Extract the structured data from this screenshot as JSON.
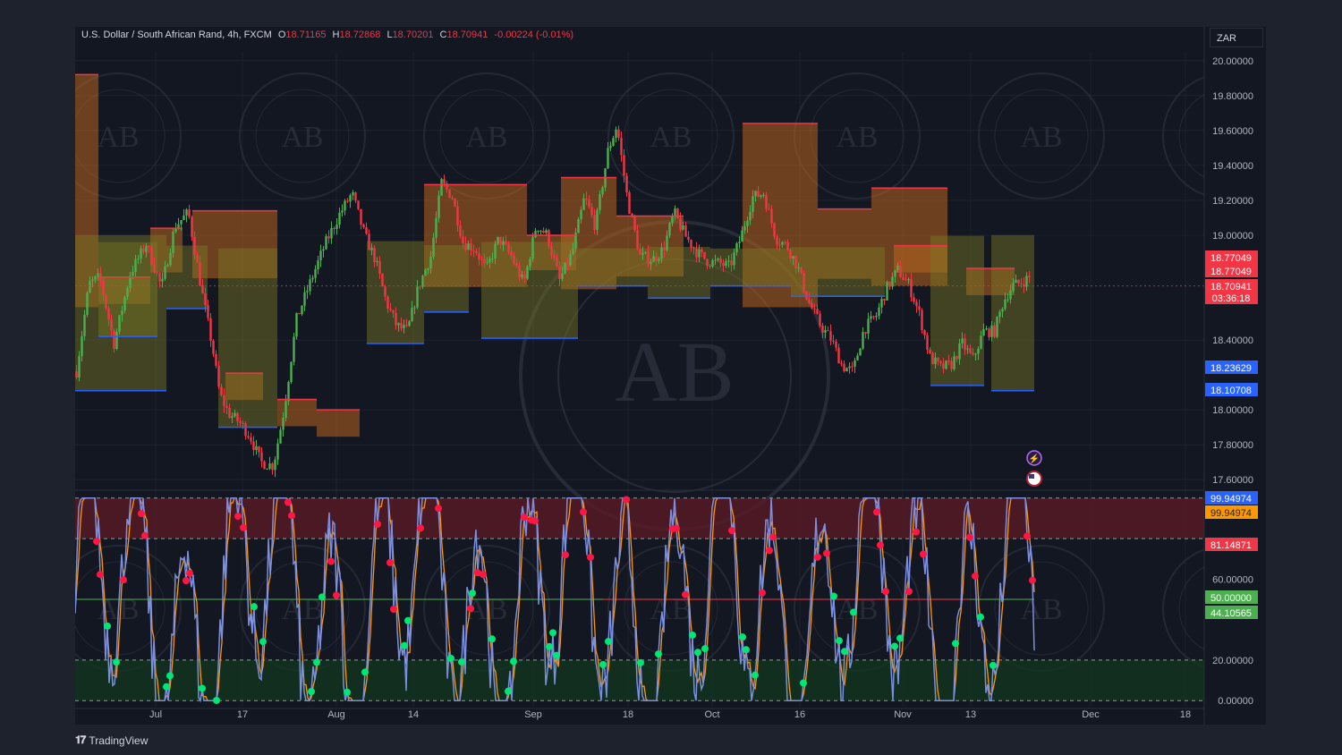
{
  "header": {
    "symbol": "U.S. Dollar / South African Rand, 4h, FXCM",
    "open_key": "O",
    "open": "18.71165",
    "high_key": "H",
    "high": "18.72868",
    "low_key": "L",
    "low": "18.70201",
    "close_key": "C",
    "close": "18.70941",
    "change": "-0.00224 (-0.01%)"
  },
  "currency_button": "ZAR",
  "branding": "TradingView",
  "colors": {
    "background": "#131722",
    "outer": "#1e222d",
    "bull": "#26a69a",
    "candle_green": "#4caf50",
    "candle_red": "#f23645",
    "resistance": "#f23645",
    "support": "#2962ff",
    "zone_bear": "#b8651f",
    "zone_bull": "#7a7a24",
    "k_line": "#7b8ee0",
    "d_line": "#ff9800",
    "overbought_fill": "#5a1a24",
    "oversold_fill": "#12351f",
    "mid_line": "#4caf50",
    "cross_up": "#00e676",
    "cross_down": "#ff1744"
  },
  "watermark": "AB",
  "chart_data": [
    {
      "type": "candlestick",
      "title": "U.S. Dollar / South African Rand, 4h, FXCM",
      "x_ticks": [
        "Jul",
        "17",
        "Aug",
        "14",
        "Sep",
        "18",
        "Oct",
        "16",
        "Nov",
        "13",
        "Dec",
        "18"
      ],
      "y_ticks": [
        "20.00000",
        "19.80000",
        "19.60000",
        "19.40000",
        "19.20000",
        "19.00000",
        "18.40000",
        "18.00000",
        "17.80000",
        "17.60000"
      ],
      "ylim": [
        17.55,
        20.05
      ],
      "price_path": [
        [
          0,
          18.22
        ],
        [
          14,
          18.72
        ],
        [
          26,
          18.76
        ],
        [
          42,
          18.38
        ],
        [
          60,
          18.78
        ],
        [
          78,
          18.95
        ],
        [
          95,
          18.7
        ],
        [
          110,
          19.05
        ],
        [
          125,
          19.13
        ],
        [
          140,
          18.68
        ],
        [
          152,
          18.36
        ],
        [
          160,
          18.09
        ],
        [
          170,
          17.98
        ],
        [
          182,
          17.93
        ],
        [
          194,
          17.85
        ],
        [
          206,
          17.7
        ],
        [
          220,
          17.68
        ],
        [
          232,
          18.0
        ],
        [
          246,
          18.52
        ],
        [
          262,
          18.74
        ],
        [
          278,
          18.95
        ],
        [
          294,
          19.12
        ],
        [
          308,
          19.24
        ],
        [
          322,
          19.0
        ],
        [
          334,
          18.86
        ],
        [
          346,
          18.62
        ],
        [
          358,
          18.48
        ],
        [
          370,
          18.45
        ],
        [
          382,
          18.7
        ],
        [
          396,
          18.88
        ],
        [
          408,
          19.3
        ],
        [
          420,
          19.22
        ],
        [
          432,
          18.96
        ],
        [
          446,
          18.92
        ],
        [
          458,
          18.8
        ],
        [
          472,
          18.98
        ],
        [
          486,
          18.88
        ],
        [
          500,
          18.72
        ],
        [
          514,
          19.06
        ],
        [
          526,
          19.0
        ],
        [
          540,
          18.74
        ],
        [
          554,
          18.9
        ],
        [
          568,
          19.22
        ],
        [
          580,
          19.05
        ],
        [
          594,
          19.48
        ],
        [
          604,
          19.63
        ],
        [
          616,
          19.2
        ],
        [
          630,
          18.88
        ],
        [
          644,
          18.86
        ],
        [
          656,
          18.92
        ],
        [
          668,
          19.13
        ],
        [
          680,
          19.0
        ],
        [
          694,
          18.9
        ],
        [
          706,
          18.85
        ],
        [
          718,
          18.84
        ],
        [
          730,
          18.82
        ],
        [
          742,
          18.98
        ],
        [
          756,
          19.22
        ],
        [
          768,
          19.24
        ],
        [
          782,
          18.98
        ],
        [
          794,
          18.94
        ],
        [
          806,
          18.82
        ],
        [
          818,
          18.62
        ],
        [
          832,
          18.48
        ],
        [
          844,
          18.4
        ],
        [
          856,
          18.25
        ],
        [
          868,
          18.22
        ],
        [
          880,
          18.46
        ],
        [
          894,
          18.54
        ],
        [
          906,
          18.7
        ],
        [
          918,
          18.8
        ],
        [
          930,
          18.72
        ],
        [
          942,
          18.55
        ],
        [
          954,
          18.3
        ],
        [
          966,
          18.24
        ],
        [
          978,
          18.26
        ],
        [
          990,
          18.38
        ],
        [
          1002,
          18.29
        ],
        [
          1014,
          18.45
        ],
        [
          1026,
          18.45
        ],
        [
          1036,
          18.62
        ],
        [
          1046,
          18.71
        ],
        [
          1056,
          18.73
        ],
        [
          1066,
          18.76
        ]
      ],
      "levels": {
        "resistance": [
          {
            "x0": 0,
            "x1": 26,
            "y": 19.92
          },
          {
            "x0": 26,
            "x1": 84,
            "y": 18.76
          },
          {
            "x0": 84,
            "x1": 120,
            "y": 19.04
          },
          {
            "x0": 131,
            "x1": 226,
            "y": 19.14
          },
          {
            "x0": 168,
            "x1": 210,
            "y": 18.21
          },
          {
            "x0": 226,
            "x1": 270,
            "y": 18.06
          },
          {
            "x0": 270,
            "x1": 318,
            "y": 18.0
          },
          {
            "x0": 390,
            "x1": 505,
            "y": 19.29
          },
          {
            "x0": 505,
            "x1": 560,
            "y": 19.0
          },
          {
            "x0": 543,
            "x1": 605,
            "y": 19.33
          },
          {
            "x0": 605,
            "x1": 680,
            "y": 19.11
          },
          {
            "x0": 746,
            "x1": 830,
            "y": 19.64
          },
          {
            "x0": 830,
            "x1": 890,
            "y": 19.15
          },
          {
            "x0": 890,
            "x1": 975,
            "y": 19.27
          },
          {
            "x0": 915,
            "x1": 975,
            "y": 18.94
          },
          {
            "x0": 996,
            "x1": 1050,
            "y": 18.81
          }
        ],
        "support": [
          {
            "x0": 0,
            "x1": 102,
            "y": 18.11
          },
          {
            "x0": 26,
            "x1": 92,
            "y": 18.42
          },
          {
            "x0": 102,
            "x1": 148,
            "y": 18.58
          },
          {
            "x0": 160,
            "x1": 226,
            "y": 17.9
          },
          {
            "x0": 326,
            "x1": 390,
            "y": 18.38
          },
          {
            "x0": 390,
            "x1": 440,
            "y": 18.56
          },
          {
            "x0": 454,
            "x1": 562,
            "y": 18.41
          },
          {
            "x0": 562,
            "x1": 640,
            "y": 18.71
          },
          {
            "x0": 640,
            "x1": 710,
            "y": 18.64
          },
          {
            "x0": 710,
            "x1": 800,
            "y": 18.71
          },
          {
            "x0": 800,
            "x1": 905,
            "y": 18.65
          },
          {
            "x0": 956,
            "x1": 1016,
            "y": 18.14
          },
          {
            "x0": 1024,
            "x1": 1072,
            "y": 18.11
          }
        ]
      },
      "price_labels": [
        {
          "value": "18.77049",
          "color": "#f23645"
        },
        {
          "value": "18.77049",
          "color": "#f23645"
        },
        {
          "value": "18.70941",
          "countdown": "03:36:18",
          "color": "#f23645"
        },
        {
          "value": "18.23629",
          "color": "#2962ff"
        },
        {
          "value": "18.10708",
          "color": "#2962ff"
        }
      ],
      "current_price": 18.70941
    },
    {
      "type": "line",
      "title": "",
      "y_ticks": [
        "60.00000",
        "20.00000",
        "0.00000"
      ],
      "ylim": [
        -3,
        103
      ],
      "overbought": 80,
      "oversold": 20,
      "midline": 50,
      "period_days": 10,
      "x_range_days": [
        0,
        1066
      ],
      "price_labels": [
        {
          "value": "99.94974",
          "color": "#2962ff"
        },
        {
          "value": "99.94974",
          "color": "#ff9800"
        },
        {
          "value": "81.14871",
          "color": "#f23645"
        },
        {
          "value": "50.00000",
          "color": "#4caf50"
        },
        {
          "value": "44.10565",
          "color": "#4caf50"
        }
      ],
      "series": [
        {
          "values_note": "",
          "kind": "K",
          "color": "#7b8ee0"
        },
        {
          "kind": "D",
          "color": "#ff9800"
        }
      ]
    }
  ]
}
